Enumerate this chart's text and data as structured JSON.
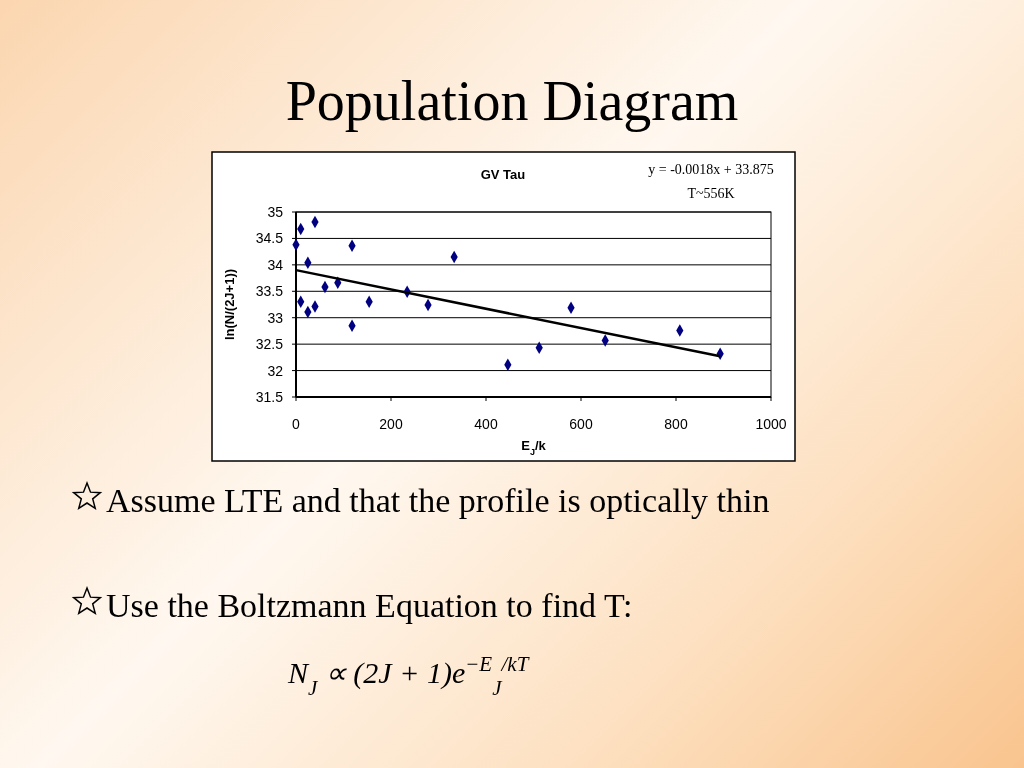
{
  "chart_data": {
    "type": "scatter",
    "title": "Population Diagram",
    "subtitle": "GV Tau",
    "xlabel": "E$_{J}$/k",
    "ylabel": "ln(N/(2J+1))",
    "xlim": [
      0,
      1000
    ],
    "xticks": [
      0,
      200,
      400,
      600,
      800,
      1000
    ],
    "ylim": [
      31.5,
      35
    ],
    "yticks": [
      31.5,
      32,
      32.5,
      33,
      33.5,
      34,
      34.5,
      35
    ],
    "grid": "y",
    "series": [
      {
        "color": "#000080",
        "marker": "diamond",
        "x": [
          0,
          10,
          10,
          25,
          25,
          40,
          40,
          61,
          88,
          118,
          118,
          154,
          234,
          278,
          333,
          446,
          512,
          579,
          651,
          808,
          893
        ],
        "values": [
          34.38,
          34.68,
          33.3,
          34.04,
          33.11,
          34.81,
          33.21,
          33.58,
          33.66,
          34.36,
          32.85,
          33.3,
          33.49,
          33.24,
          34.15,
          32.11,
          32.43,
          33.19,
          32.57,
          32.76,
          32.32
        ]
      },
      {
        "type": "line",
        "color": "#000000",
        "marker": "none",
        "x": [
          0,
          893
        ],
        "values": [
          33.9,
          32.27
        ]
      }
    ],
    "annotations": [
      "y = -0.0018x + 33.875",
      "T~556K",
      "Assume LTE and that the profile is optically thin",
      "Use the Boltzmann Equation to find T:",
      "N$_{J}$ ∝ (2J + 1)e$^{−E}$$_{J}$$^{/kT}$"
    ]
  }
}
